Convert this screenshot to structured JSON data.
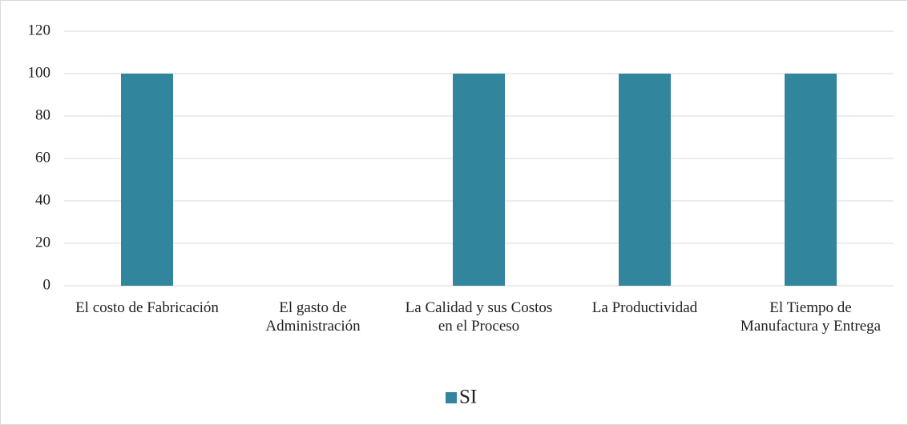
{
  "chart_data": {
    "type": "bar",
    "categories": [
      "El costo de Fabricación",
      "El gasto de Administración",
      "La Calidad y sus Costos en el Proceso",
      "La Productividad",
      "El Tiempo de Manufactura y Entrega"
    ],
    "series": [
      {
        "name": "SI",
        "color": "#31859c",
        "values": [
          100,
          0,
          100,
          100,
          100
        ]
      }
    ],
    "ylim": [
      0,
      120
    ],
    "yticks": [
      0,
      20,
      40,
      60,
      80,
      100,
      120
    ],
    "grid": true,
    "legend": "bottom"
  }
}
